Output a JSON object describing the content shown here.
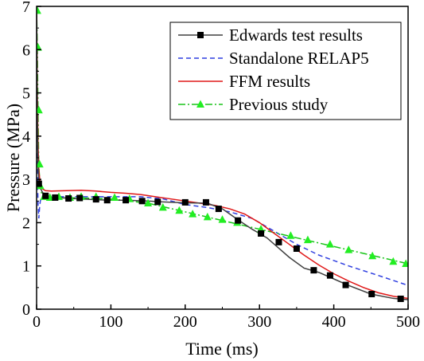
{
  "chart_data": {
    "type": "line",
    "xlabel": "Time (ms)",
    "ylabel": "Pressure (MPa)",
    "xlim": [
      0,
      500
    ],
    "ylim": [
      0,
      7
    ],
    "xticks": [
      "0",
      "100",
      "200",
      "300",
      "400",
      "500"
    ],
    "yticks": [
      "0",
      "1",
      "2",
      "3",
      "4",
      "5",
      "6",
      "7"
    ],
    "grid": false,
    "legend_position": "top-right",
    "series": [
      {
        "name": "Edwards test results",
        "color": "#404040",
        "dash": "solid",
        "marker": "square",
        "marker_color": "#000000",
        "x": [
          0,
          1,
          2,
          3,
          5,
          8,
          12,
          20,
          30,
          45,
          60,
          80,
          100,
          120,
          150,
          170,
          200,
          230,
          250,
          270,
          290,
          300,
          310,
          320,
          340,
          360,
          380,
          400,
          420,
          450,
          480,
          500
        ],
        "y": [
          7.0,
          4.5,
          3.3,
          3.0,
          2.8,
          2.7,
          2.62,
          2.58,
          2.58,
          2.56,
          2.55,
          2.53,
          2.52,
          2.52,
          2.5,
          2.48,
          2.46,
          2.45,
          2.32,
          2.08,
          1.85,
          1.75,
          1.65,
          1.5,
          1.2,
          0.95,
          0.85,
          0.7,
          0.55,
          0.35,
          0.25,
          0.22
        ],
        "markers_x": [
          3,
          12,
          25,
          43,
          58,
          80,
          95,
          120,
          142,
          163,
          200,
          228,
          245,
          271,
          302,
          326,
          350,
          373,
          395,
          416,
          451,
          490
        ],
        "markers_y": [
          2.9,
          2.62,
          2.58,
          2.56,
          2.57,
          2.54,
          2.52,
          2.52,
          2.5,
          2.48,
          2.47,
          2.47,
          2.32,
          2.05,
          1.75,
          1.55,
          1.4,
          0.9,
          0.78,
          0.56,
          0.35,
          0.24
        ]
      },
      {
        "name": "Standalone RELAP5",
        "color": "#2f3fe0",
        "dash": "dashed",
        "marker": "none",
        "x": [
          0,
          1,
          2,
          3,
          4,
          5,
          6,
          8,
          15,
          30,
          60,
          100,
          140,
          170,
          200,
          230,
          260,
          290,
          320,
          350,
          380,
          420,
          460,
          500
        ],
        "y": [
          6.0,
          3.2,
          2.4,
          2.1,
          2.35,
          2.5,
          2.55,
          2.58,
          2.58,
          2.6,
          2.6,
          2.6,
          2.6,
          2.55,
          2.42,
          2.35,
          2.25,
          2.1,
          1.8,
          1.5,
          1.25,
          1.0,
          0.78,
          0.55
        ]
      },
      {
        "name": "FFM results",
        "color": "#e01818",
        "dash": "solid",
        "marker": "none",
        "x": [
          0,
          1,
          2,
          3,
          5,
          8,
          12,
          20,
          40,
          60,
          80,
          100,
          120,
          140,
          160,
          180,
          200,
          220,
          240,
          260,
          280,
          300,
          320,
          340,
          360,
          380,
          400,
          420,
          440,
          460,
          480,
          500
        ],
        "y": [
          7.0,
          5.0,
          3.8,
          3.2,
          2.9,
          2.78,
          2.74,
          2.73,
          2.74,
          2.75,
          2.73,
          2.7,
          2.68,
          2.65,
          2.6,
          2.55,
          2.5,
          2.45,
          2.4,
          2.32,
          2.2,
          2.0,
          1.75,
          1.5,
          1.25,
          1.02,
          0.82,
          0.65,
          0.5,
          0.38,
          0.3,
          0.25
        ]
      },
      {
        "name": "Previous study",
        "color": "#18c418",
        "dash": "dashdot",
        "marker": "triangle",
        "marker_color": "#22ee22",
        "x": [
          0,
          1,
          2,
          3,
          5,
          8,
          15,
          30,
          60,
          100,
          150,
          200,
          250,
          300,
          350,
          400,
          450,
          500
        ],
        "y": [
          7.0,
          6.0,
          4.5,
          3.3,
          2.8,
          2.6,
          2.58,
          2.58,
          2.57,
          2.55,
          2.45,
          2.25,
          2.05,
          1.85,
          1.65,
          1.45,
          1.25,
          1.05
        ],
        "markers_x": [
          1,
          2,
          3,
          4,
          5,
          10,
          18,
          30,
          45,
          60,
          80,
          105,
          125,
          150,
          170,
          192,
          210,
          230,
          250,
          270,
          302,
          342,
          365,
          395,
          420,
          452,
          480,
          497
        ],
        "markers_y": [
          6.9,
          6.05,
          4.6,
          3.35,
          2.85,
          2.6,
          2.58,
          2.6,
          2.58,
          2.6,
          2.6,
          2.58,
          2.55,
          2.45,
          2.35,
          2.28,
          2.2,
          2.13,
          2.07,
          2.0,
          1.85,
          1.7,
          1.6,
          1.5,
          1.37,
          1.23,
          1.1,
          1.05
        ]
      }
    ]
  }
}
